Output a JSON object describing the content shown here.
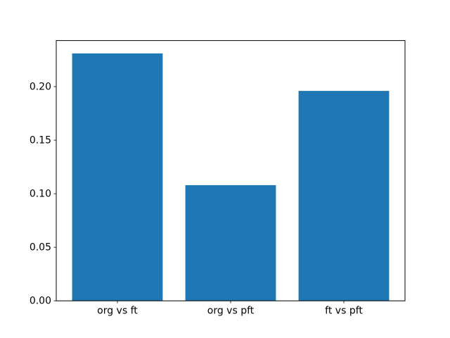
{
  "chart_data": {
    "type": "bar",
    "categories": [
      "org vs ft",
      "org vs pft",
      "ft vs pft"
    ],
    "values": [
      0.231,
      0.108,
      0.196
    ],
    "title": "",
    "xlabel": "",
    "ylabel": "",
    "ylim": [
      0,
      0.243
    ],
    "xlim": [
      -0.54,
      2.54
    ],
    "bar_width": 0.8,
    "yticks": [
      0.0,
      0.05,
      0.1,
      0.15,
      0.2
    ],
    "ytick_labels": [
      "0.00",
      "0.05",
      "0.10",
      "0.15",
      "0.20"
    ],
    "bar_color": "#1f77b4",
    "background_color": "#ffffff",
    "spine_color": "#000000",
    "tick_color": "#000000",
    "grid": false,
    "legend": false
  }
}
